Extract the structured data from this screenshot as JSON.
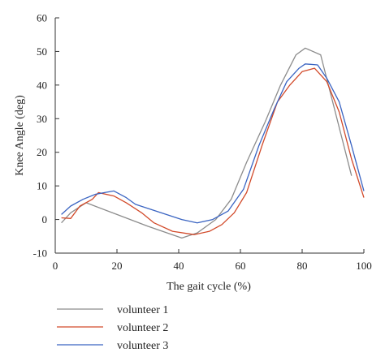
{
  "chart_data": {
    "type": "line",
    "title": "",
    "xlabel": "The gait cycle (%)",
    "ylabel": "Knee Angle (deg)",
    "xlim": [
      0,
      100
    ],
    "ylim": [
      -10,
      60
    ],
    "xticks": [
      0,
      20,
      40,
      60,
      80,
      100
    ],
    "yticks": [
      -10,
      0,
      10,
      20,
      30,
      40,
      50,
      60
    ],
    "grid": false,
    "legend_position": "bottom-left",
    "series": [
      {
        "name": "volunteer 1",
        "color": "#8c8c8c",
        "x": [
          2,
          5,
          10,
          20,
          30,
          41,
          46,
          52,
          57,
          62,
          68,
          73,
          78,
          81,
          86,
          91,
          96
        ],
        "y": [
          -1,
          2,
          5,
          1.5,
          -2,
          -5.5,
          -4,
          0,
          6,
          17,
          29,
          40,
          49,
          51,
          49,
          31,
          13
        ]
      },
      {
        "name": "volunteer 2",
        "color": "#d24a2a",
        "x": [
          2,
          5,
          8,
          12,
          14,
          19,
          23,
          28,
          32,
          38,
          45,
          50,
          54,
          58,
          62,
          67,
          72,
          76,
          80,
          84,
          88,
          92,
          96,
          100
        ],
        "y": [
          0.5,
          0.3,
          4,
          6,
          8,
          7,
          5,
          2,
          -1,
          -3.5,
          -4.5,
          -3.5,
          -1.5,
          2,
          8,
          22,
          35,
          40,
          44,
          45,
          41,
          32,
          18,
          6.5
        ]
      },
      {
        "name": "volunteer 3",
        "color": "#3a64c2",
        "x": [
          2,
          5,
          9,
          13,
          16,
          19,
          23,
          26,
          31,
          36,
          41,
          46,
          51,
          56,
          61,
          66,
          71,
          75,
          79,
          81,
          85,
          88,
          92,
          96,
          100
        ],
        "y": [
          1.5,
          4,
          6,
          7.5,
          8,
          8.5,
          6.5,
          4.5,
          3,
          1.5,
          0,
          -1,
          0,
          2.5,
          9,
          22,
          33,
          41,
          45,
          46.3,
          46,
          42,
          35,
          22,
          8.5
        ]
      }
    ]
  }
}
